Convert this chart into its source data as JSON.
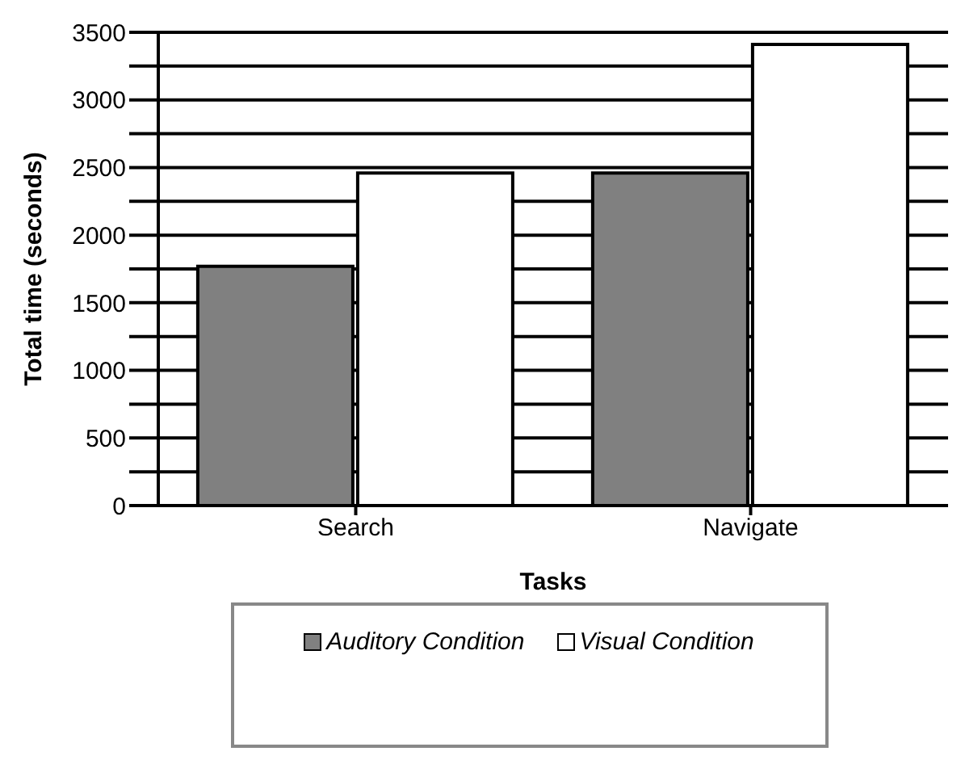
{
  "chart_data": {
    "type": "bar",
    "xlabel": "Tasks",
    "ylabel": "Total time (seconds)",
    "categories": [
      "Search",
      "Navigate"
    ],
    "series": [
      {
        "name": "Auditory Condition",
        "color": "#808080",
        "values": [
          1770,
          2460
        ]
      },
      {
        "name": "Visual Condition",
        "color": "#ffffff",
        "values": [
          2460,
          3410
        ]
      }
    ],
    "ylim": [
      0,
      3500
    ],
    "yticks": [
      0,
      {
        "value": 250,
        "label": null
      },
      500,
      {
        "value": 750,
        "label": null
      },
      1000,
      {
        "value": 1250,
        "label": null
      },
      1500,
      {
        "value": 1750,
        "label": null
      },
      2000,
      {
        "value": 2250,
        "label": null
      },
      2500,
      {
        "value": 2750,
        "label": null
      },
      3000,
      {
        "value": 3250,
        "label": null
      },
      3500
    ],
    "grid": "y",
    "legend": "bottom"
  }
}
